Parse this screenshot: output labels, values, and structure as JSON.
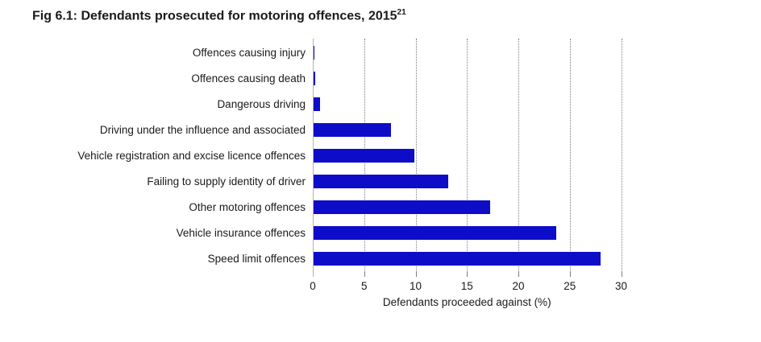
{
  "title": {
    "text": "Fig 6.1: Defendants prosecuted for motoring offences, 2015",
    "superscript": "21"
  },
  "chart_data": {
    "type": "bar",
    "orientation": "horizontal",
    "title": "Fig 6.1: Defendants prosecuted for motoring offences, 2015 [superscript 21]",
    "categories": [
      "Offences causing injury",
      "Offences causing death",
      "Dangerous driving",
      "Driving under the influence and associated",
      "Vehicle registration and excise licence offences",
      "Failing to supply identity of driver",
      "Other motoring offences",
      "Vehicle insurance offences",
      "Speed limit offences"
    ],
    "values": [
      0.04,
      0.15,
      0.6,
      7.5,
      9.8,
      13.1,
      17.2,
      23.6,
      27.9
    ],
    "xlabel": "Defendants proceeded against (%)",
    "xticks": [
      0,
      5,
      10,
      15,
      20,
      25,
      30
    ],
    "xlim": [
      0,
      30
    ],
    "grid": "vertical-dotted",
    "legend": "none",
    "bar_color": "#0d0dc9",
    "gridline_color": "#7f7f7f",
    "axis_line_color": "#b3b3b3",
    "tick_color": "#7f7f7f",
    "text_color": "#1a1a1a"
  }
}
